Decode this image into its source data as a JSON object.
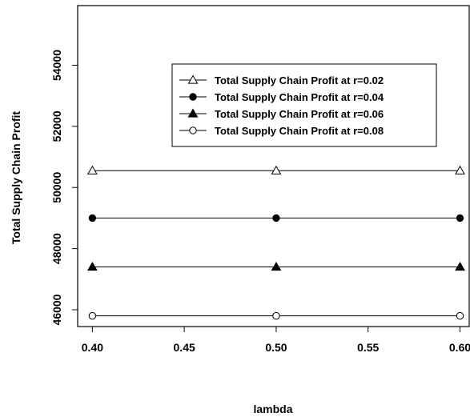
{
  "chart_data": {
    "type": "line",
    "title": "",
    "xlabel": "lambda",
    "ylabel": "Total Supply Chain Profit",
    "xlim": [
      0.392,
      0.605
    ],
    "ylim": [
      45450,
      55950
    ],
    "x_ticks": [
      {
        "value": 0.4,
        "label": "0.40"
      },
      {
        "value": 0.45,
        "label": "0.45"
      },
      {
        "value": 0.5,
        "label": "0.50"
      },
      {
        "value": 0.55,
        "label": "0.55"
      },
      {
        "value": 0.6,
        "label": "0.60"
      }
    ],
    "y_ticks": [
      {
        "value": 46000,
        "label": "46000"
      },
      {
        "value": 48000,
        "label": "48000"
      },
      {
        "value": 50000,
        "label": "50000"
      },
      {
        "value": 52000,
        "label": "52000"
      },
      {
        "value": 54000,
        "label": "54000"
      }
    ],
    "grid": false,
    "legend_position": "top-center",
    "color": "#000000",
    "series": [
      {
        "name": "Total Supply Chain Profit at r=0.02",
        "marker": "open-triangle",
        "x": [
          0.4,
          0.5,
          0.6
        ],
        "y": [
          50550,
          50550,
          50550
        ]
      },
      {
        "name": "Total Supply Chain Profit at r=0.04",
        "marker": "filled-circle",
        "x": [
          0.4,
          0.5,
          0.6
        ],
        "y": [
          49000,
          49000,
          49000
        ]
      },
      {
        "name": "Total Supply Chain Profit at r=0.06",
        "marker": "filled-triangle",
        "x": [
          0.4,
          0.5,
          0.6
        ],
        "y": [
          47400,
          47400,
          47400
        ]
      },
      {
        "name": "Total Supply Chain Profit at r=0.08",
        "marker": "open-circle",
        "x": [
          0.4,
          0.5,
          0.6
        ],
        "y": [
          45800,
          45800,
          45800
        ]
      }
    ]
  }
}
